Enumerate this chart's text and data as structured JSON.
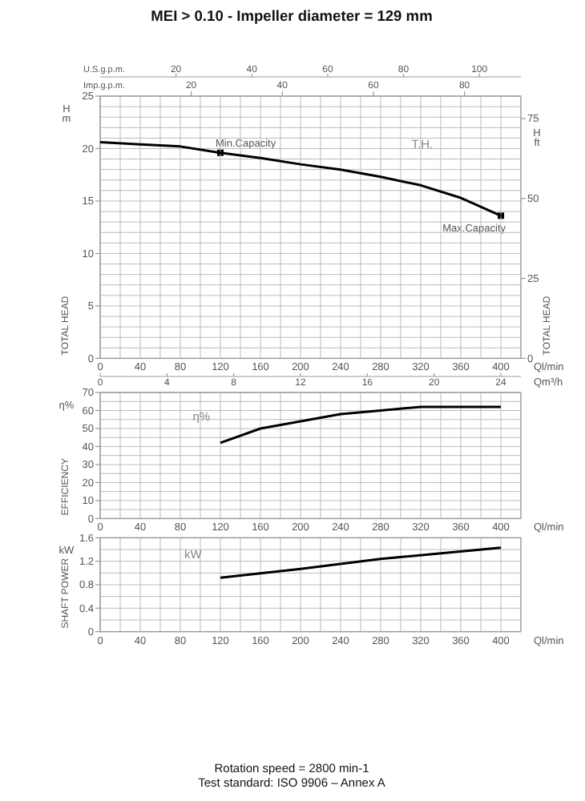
{
  "chart_data": [
    {
      "type": "scatter",
      "xlabel": "Imp.g.p.m.",
      "xlim": [
        0,
        92.39
      ],
      "xticks": [
        20,
        40,
        60,
        80
      ],
      "ylim": [
        0,
        25
      ],
      "yticks": [
        0,
        5,
        10,
        15,
        20,
        25
      ],
      "tick_labels": "x",
      "marker": "square",
      "series": [
        {
          "color": "#000000",
          "x": [
            26.4,
            88.0
          ],
          "values": [
            19.6,
            13.6
          ]
        }
      ],
      "annotations": [
        {
          "text": "Min.Capacity",
          "x": 26.4,
          "y": 19.6
        },
        {
          "text": "Max.Capacity",
          "x": 88.0,
          "y": 13.6
        }
      ]
    },
    {
      "type": "line",
      "title": "MEI > 0.10 - Impeller diameter = 129 mm",
      "xlabel": "Ql/min",
      "ylabel": "TOTAL HEAD",
      "y2label": "TOTAL HEAD",
      "grid": true,
      "xlim": [
        0,
        420
      ],
      "xticks": [
        0,
        {
          "value": 20,
          "label": null
        },
        40,
        {
          "value": 60,
          "label": null
        },
        80,
        {
          "value": 100,
          "label": null
        },
        120,
        {
          "value": 140,
          "label": null
        },
        160,
        {
          "value": 180,
          "label": null
        },
        200,
        {
          "value": 220,
          "label": null
        },
        240,
        {
          "value": 260,
          "label": null
        },
        280,
        {
          "value": 300,
          "label": null
        },
        320,
        {
          "value": 340,
          "label": null
        },
        360,
        {
          "value": 380,
          "label": null
        },
        400
      ],
      "ylim": [
        0,
        25
      ],
      "yticks": [
        0,
        {
          "value": 1,
          "label": null
        },
        {
          "value": 2,
          "label": null
        },
        {
          "value": 3,
          "label": null
        },
        {
          "value": 4,
          "label": null
        },
        5,
        {
          "value": 6,
          "label": null
        },
        {
          "value": 7,
          "label": null
        },
        {
          "value": 8,
          "label": null
        },
        {
          "value": 9,
          "label": null
        },
        10,
        {
          "value": 11,
          "label": null
        },
        {
          "value": 12,
          "label": null
        },
        {
          "value": 13,
          "label": null
        },
        {
          "value": 14,
          "label": null
        },
        15,
        {
          "value": 16,
          "label": null
        },
        {
          "value": 17,
          "label": null
        },
        {
          "value": 18,
          "label": null
        },
        {
          "value": 19,
          "label": null
        },
        20,
        {
          "value": 21,
          "label": null
        },
        {
          "value": 22,
          "label": null
        },
        {
          "value": 23,
          "label": null
        },
        {
          "value": 24,
          "label": null
        },
        25
      ],
      "y2lim": [
        0,
        82.02
      ],
      "y2ticks": [
        0,
        25,
        50,
        75
      ],
      "x2label": "U.S.g.p.m.",
      "x2lim": [
        0,
        110.95
      ],
      "x2ticks": [
        20,
        40,
        60,
        80,
        100
      ],
      "series": [
        {
          "name": "T.H.",
          "color": "#000000",
          "x": [
            0,
            40,
            80,
            120,
            160,
            200,
            240,
            280,
            320,
            360,
            400
          ],
          "values": [
            20.6,
            20.4,
            20.2,
            19.6,
            19.1,
            18.5,
            18.0,
            17.3,
            16.5,
            15.3,
            13.6
          ]
        }
      ],
      "annotations": [
        "H m",
        "H ft"
      ]
    },
    {
      "type": "line",
      "ylabel": "EFFICIENCY",
      "xlabel": "Ql/min",
      "grid": true,
      "xlim": [
        0,
        420
      ],
      "xticks": [
        0,
        {
          "value": 20,
          "label": null
        },
        40,
        {
          "value": 60,
          "label": null
        },
        80,
        {
          "value": 100,
          "label": null
        },
        120,
        {
          "value": 140,
          "label": null
        },
        160,
        {
          "value": 180,
          "label": null
        },
        200,
        {
          "value": 220,
          "label": null
        },
        240,
        {
          "value": 260,
          "label": null
        },
        280,
        {
          "value": 300,
          "label": null
        },
        320,
        {
          "value": 340,
          "label": null
        },
        360,
        {
          "value": 380,
          "label": null
        },
        400
      ],
      "ylim": [
        0,
        70
      ],
      "yticks": [
        0,
        {
          "value": 5,
          "label": null
        },
        10,
        {
          "value": 15,
          "label": null
        },
        20,
        {
          "value": 25,
          "label": null
        },
        30,
        {
          "value": 35,
          "label": null
        },
        40,
        {
          "value": 45,
          "label": null
        },
        50,
        {
          "value": 55,
          "label": null
        },
        60,
        {
          "value": 65,
          "label": null
        },
        70
      ],
      "x2label": "Qm³/h",
      "x2lim": [
        0,
        25.2
      ],
      "x2ticks": [
        0,
        4,
        8,
        12,
        16,
        20,
        24
      ],
      "series": [
        {
          "name": "η%",
          "color": "#000000",
          "x": [
            120,
            160,
            200,
            240,
            280,
            320,
            360,
            400
          ],
          "values": [
            42,
            50,
            54,
            58,
            60,
            62,
            62,
            62
          ]
        }
      ],
      "annotations": [
        "η%"
      ]
    },
    {
      "type": "line",
      "ylabel": "SHAFT POWER",
      "xlabel": "Ql/min",
      "grid": true,
      "xlim": [
        0,
        420
      ],
      "xticks": [
        0,
        {
          "value": 20,
          "label": null
        },
        40,
        {
          "value": 60,
          "label": null
        },
        80,
        {
          "value": 100,
          "label": null
        },
        120,
        {
          "value": 140,
          "label": null
        },
        160,
        {
          "value": 180,
          "label": null
        },
        200,
        {
          "value": 220,
          "label": null
        },
        240,
        {
          "value": 260,
          "label": null
        },
        280,
        {
          "value": 300,
          "label": null
        },
        320,
        {
          "value": 340,
          "label": null
        },
        360,
        {
          "value": 380,
          "label": null
        },
        400
      ],
      "ylim": [
        0,
        1.6
      ],
      "yticks": [
        0,
        {
          "value": 0.2,
          "label": null
        },
        0.4,
        {
          "value": 0.6,
          "label": null
        },
        0.8,
        {
          "value": 1.0,
          "label": null
        },
        1.2,
        {
          "value": 1.4,
          "label": null
        },
        1.6
      ],
      "series": [
        {
          "name": "kW",
          "color": "#000000",
          "x": [
            120,
            200,
            280,
            400
          ],
          "values": [
            0.92,
            1.07,
            1.24,
            1.43
          ]
        }
      ],
      "annotations": [
        "kW",
        "Rotation speed = 2800 min-1",
        "Test standard: ISO 9906 – Annex A"
      ]
    }
  ]
}
